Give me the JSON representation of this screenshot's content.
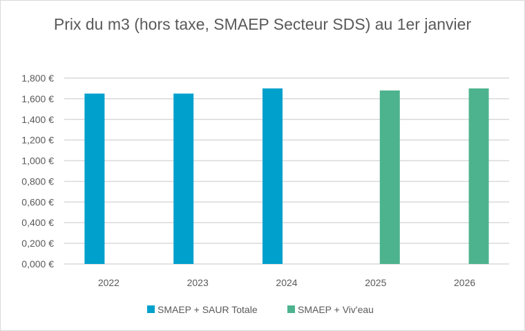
{
  "chart_data": {
    "type": "bar",
    "title": "Prix du m3 (hors taxe, SMAEP Secteur SDS) au 1er janvier",
    "xlabel": "",
    "ylabel": "",
    "categories": [
      "2022",
      "2023",
      "2024",
      "2025",
      "2026"
    ],
    "series": [
      {
        "name": "SMAEP + SAUR Totale",
        "color": "#00a0cc",
        "values": [
          1.65,
          1.65,
          1.7,
          null,
          null
        ]
      },
      {
        "name": "SMAEP + Viv'eau",
        "color": "#4db38e",
        "values": [
          null,
          null,
          null,
          1.68,
          1.7
        ]
      }
    ],
    "ylim": [
      0,
      1.8
    ],
    "yticks": [
      0,
      0.2,
      0.4,
      0.6,
      0.8,
      1.0,
      1.2,
      1.4,
      1.6,
      1.8
    ],
    "ytick_labels": [
      "0,000 €",
      "0,200 €",
      "0,400 €",
      "0,600 €",
      "0,800 €",
      "1,000 €",
      "1,200 €",
      "1,400 €",
      "1,600 €",
      "1,800 €"
    ],
    "grid": true,
    "legend_position": "bottom"
  }
}
